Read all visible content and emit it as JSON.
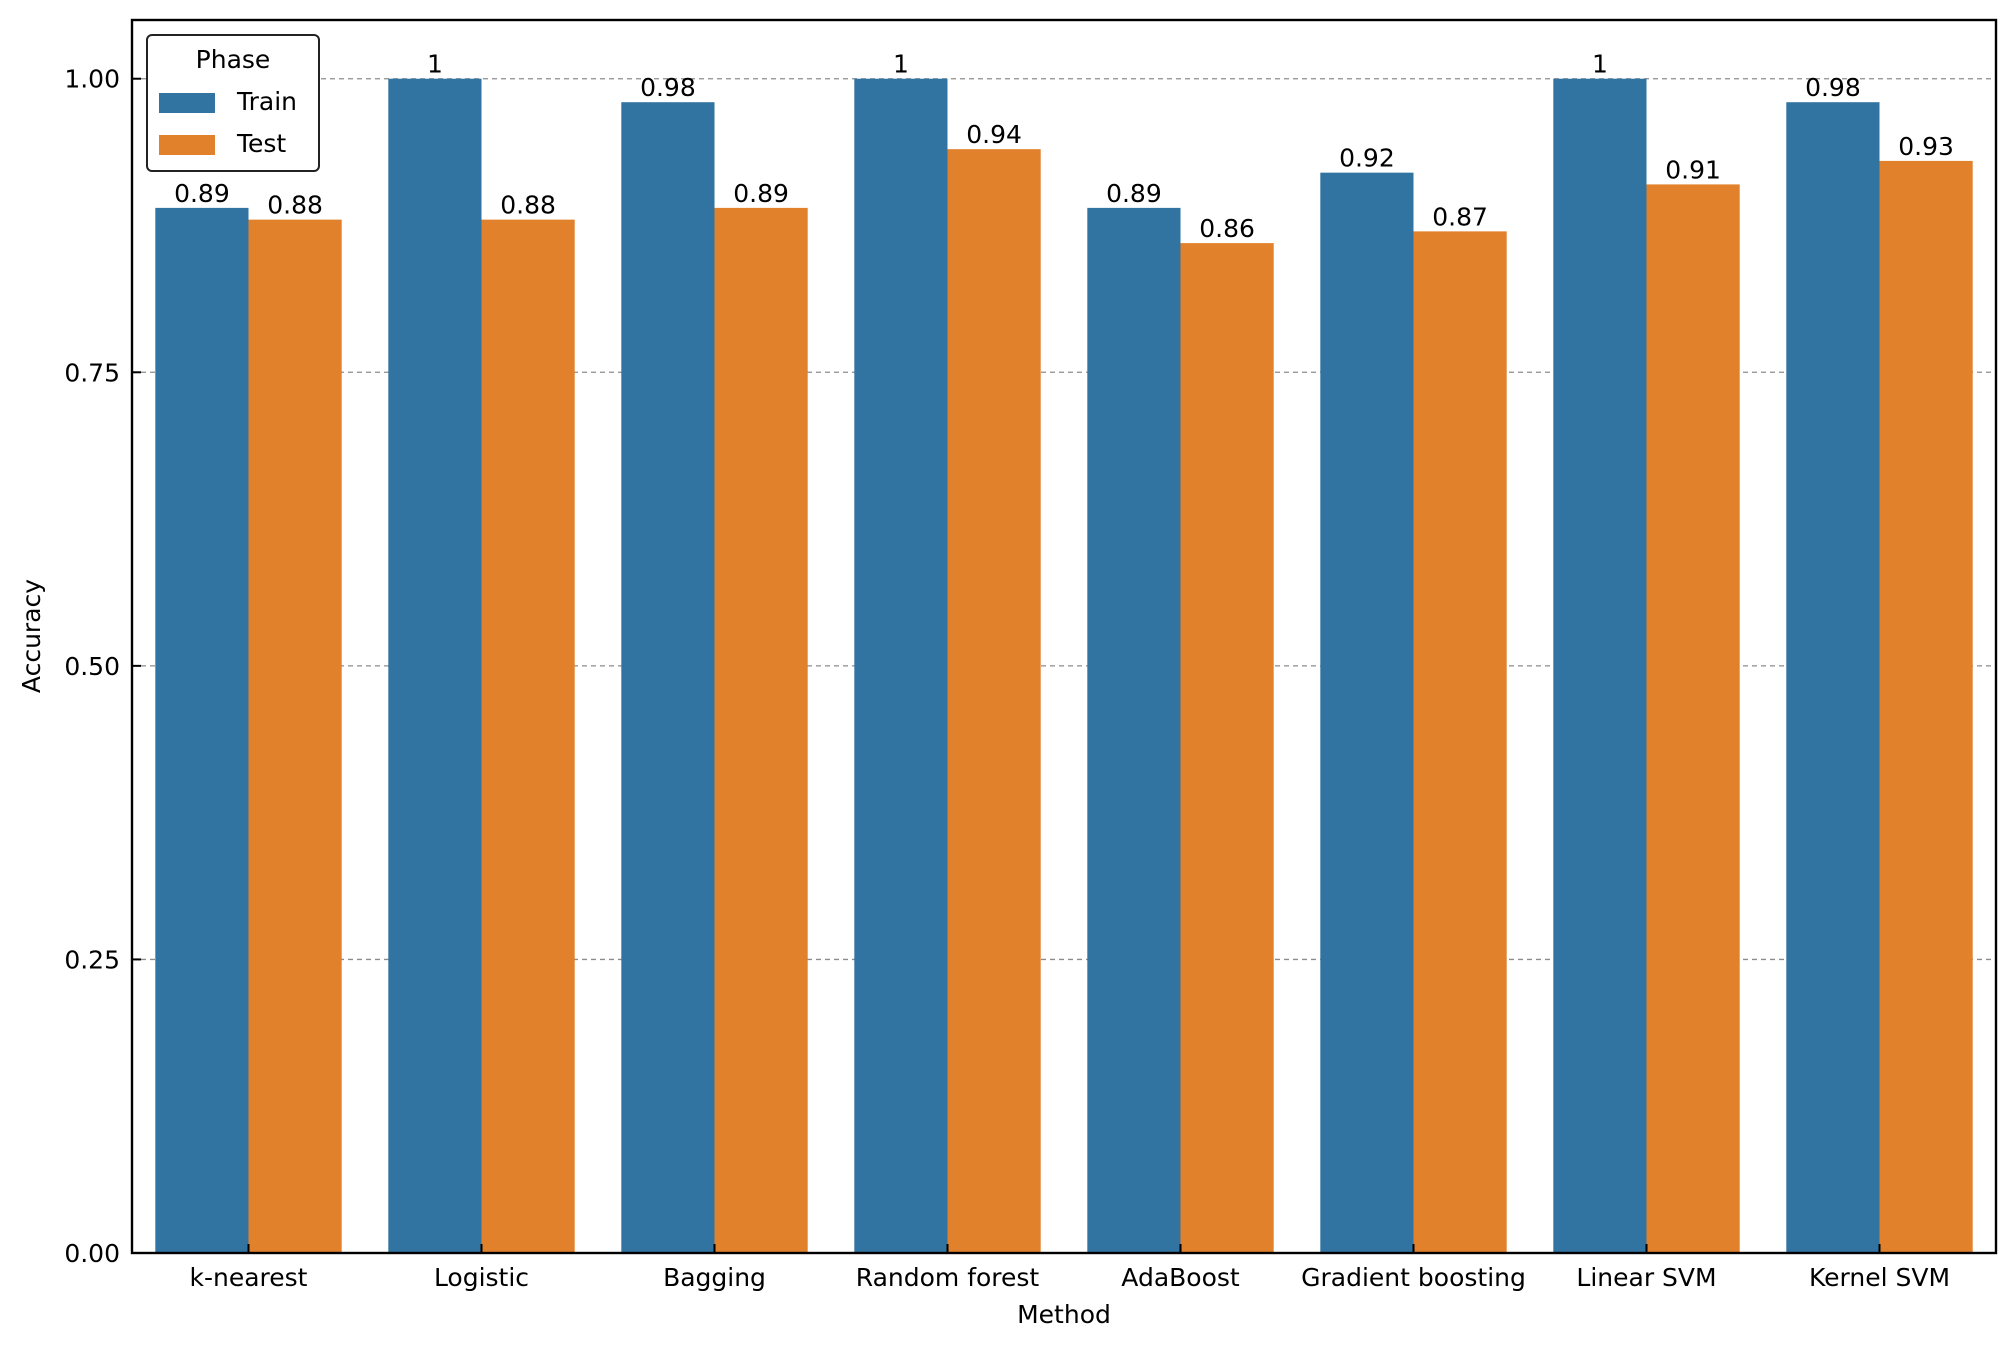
{
  "chart_data": {
    "type": "bar",
    "categories": [
      "k-nearest",
      "Logistic",
      "Bagging",
      "Random forest",
      "AdaBoost",
      "Gradient boosting",
      "Linear SVM",
      "Kernel SVM"
    ],
    "series": [
      {
        "name": "Train",
        "color": "#3274a1",
        "values": [
          0.89,
          1,
          0.98,
          1,
          0.89,
          0.92,
          1,
          0.98
        ],
        "labels": [
          "0.89",
          "1",
          "0.98",
          "1",
          "0.89",
          "0.92",
          "1",
          "0.98"
        ]
      },
      {
        "name": "Test",
        "color": "#e1812c",
        "values": [
          0.88,
          0.88,
          0.89,
          0.94,
          0.86,
          0.87,
          0.91,
          0.93
        ],
        "labels": [
          "0.88",
          "0.88",
          "0.89",
          "0.94",
          "0.86",
          "0.87",
          "0.91",
          "0.93"
        ]
      }
    ],
    "title": "",
    "xlabel": "Method",
    "ylabel": "Accuracy",
    "ylim": [
      0,
      1.05
    ],
    "yticks": [
      0,
      0.25,
      0.5,
      0.75,
      1
    ],
    "ytick_labels": [
      "0.00",
      "0.25",
      "0.50",
      "0.75",
      "1.00"
    ],
    "grid": "y-dashed",
    "legend": {
      "title": "Phase",
      "placement": "top-left"
    }
  }
}
